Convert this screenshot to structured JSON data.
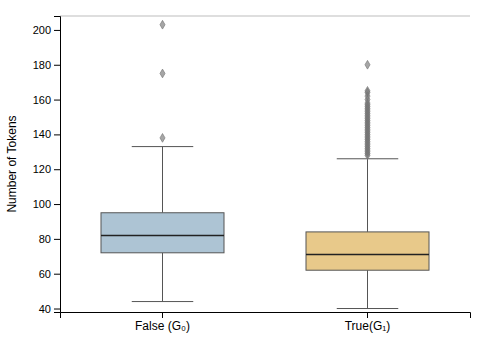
{
  "chart_data": {
    "type": "box",
    "categories": [
      "False (G₀)",
      "True(G₁)"
    ],
    "boxes": [
      {
        "whislo": 44,
        "q1": 72,
        "med": 82,
        "q3": 95,
        "whishi": 133,
        "fliers": [
          138,
          175,
          203
        ]
      },
      {
        "whislo": 40,
        "q1": 62,
        "med": 71,
        "q3": 84,
        "whishi": 126,
        "fliers": [
          128,
          129,
          130,
          131,
          132,
          133,
          134,
          135,
          136,
          137,
          138,
          139,
          140,
          141,
          142,
          143,
          144,
          145,
          146,
          147,
          148,
          149,
          150,
          151,
          152,
          153,
          154,
          155,
          156,
          157,
          158,
          160,
          162,
          164,
          165,
          180
        ]
      }
    ],
    "colors": [
      "#adc4d4",
      "#e8c98a"
    ],
    "ylabel": "Number of Tokens",
    "ylim": [
      38,
      208
    ],
    "yticks": [
      40,
      60,
      80,
      100,
      120,
      140,
      160,
      180,
      200
    ],
    "grid": false
  }
}
